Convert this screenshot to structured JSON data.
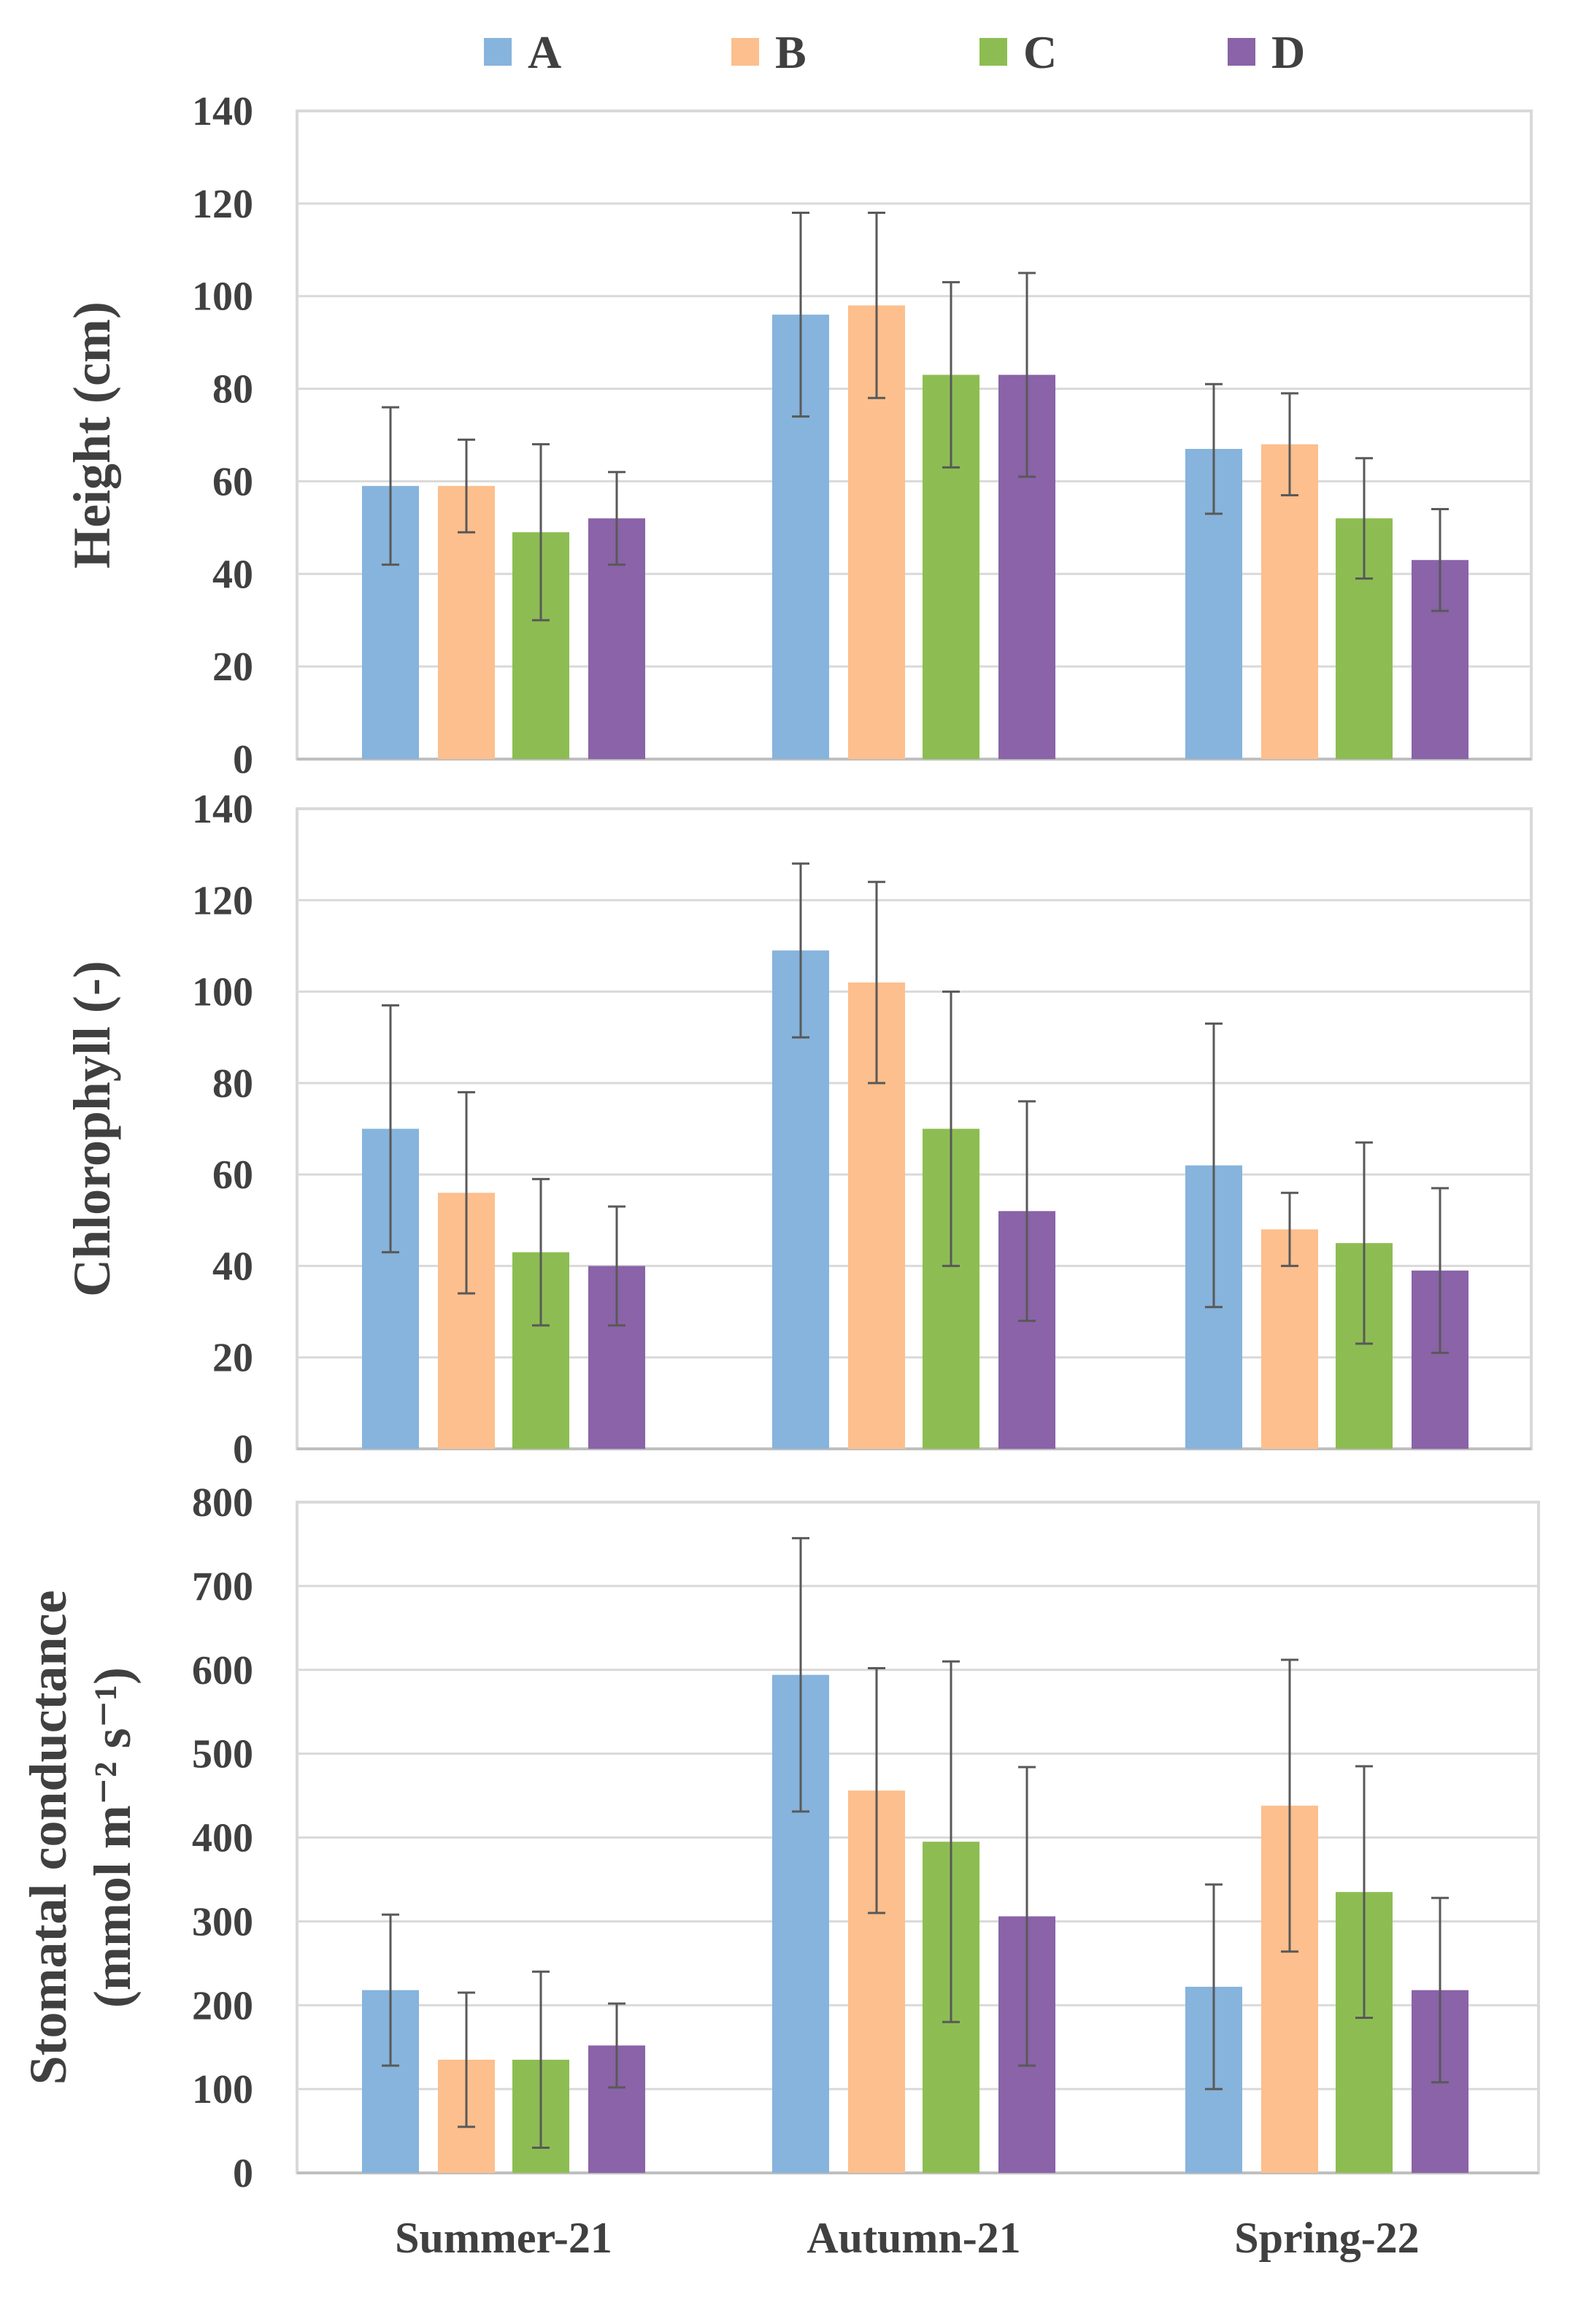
{
  "legend": [
    {
      "name": "A",
      "color": "#86b4dc"
    },
    {
      "name": "B",
      "color": "#fcbf8d"
    },
    {
      "name": "C",
      "color": "#8dbd52"
    },
    {
      "name": "D",
      "color": "#8a63a8"
    }
  ],
  "chart_data": [
    {
      "type": "bar",
      "ylabel_lines": [
        "Height (cm)"
      ],
      "ylim": [
        0,
        140
      ],
      "yticks": [
        0,
        20,
        40,
        60,
        80,
        100,
        120,
        140
      ],
      "grid": true,
      "categories": [
        "Summer-21",
        "Autumn-21",
        "Spring-22"
      ],
      "series": [
        {
          "name": "A",
          "values": [
            59,
            96,
            67
          ],
          "errors": [
            17,
            22,
            14
          ]
        },
        {
          "name": "B",
          "values": [
            59,
            98,
            68
          ],
          "errors": [
            10,
            20,
            11
          ]
        },
        {
          "name": "C",
          "values": [
            49,
            83,
            52
          ],
          "errors": [
            19,
            20,
            13
          ]
        },
        {
          "name": "D",
          "values": [
            52,
            83,
            43
          ],
          "errors": [
            10,
            22,
            11
          ]
        }
      ]
    },
    {
      "type": "bar",
      "ylabel_lines": [
        "Chlorophyll (-)"
      ],
      "ylim": [
        0,
        140
      ],
      "yticks": [
        0,
        20,
        40,
        60,
        80,
        100,
        120,
        140
      ],
      "grid": true,
      "categories": [
        "Summer-21",
        "Autumn-21",
        "Spring-22"
      ],
      "series": [
        {
          "name": "A",
          "values": [
            70,
            109,
            62
          ],
          "errors": [
            27,
            19,
            31
          ]
        },
        {
          "name": "B",
          "values": [
            56,
            102,
            48
          ],
          "errors": [
            22,
            22,
            8
          ]
        },
        {
          "name": "C",
          "values": [
            43,
            70,
            45
          ],
          "errors": [
            16,
            30,
            22
          ]
        },
        {
          "name": "D",
          "values": [
            40,
            52,
            39
          ],
          "errors": [
            13,
            24,
            18
          ]
        }
      ]
    },
    {
      "type": "bar",
      "ylabel_lines": [
        "Stomatal conductance",
        "(mmol m⁻² s⁻¹)"
      ],
      "ylim": [
        0,
        800
      ],
      "yticks": [
        0,
        100,
        200,
        300,
        400,
        500,
        600,
        700,
        800
      ],
      "grid": true,
      "categories": [
        "Summer-21",
        "Autumn-21",
        "Spring-22"
      ],
      "series": [
        {
          "name": "A",
          "values": [
            218,
            594,
            222
          ],
          "errors": [
            90,
            163,
            122
          ]
        },
        {
          "name": "B",
          "values": [
            135,
            456,
            438
          ],
          "errors": [
            80,
            146,
            174
          ]
        },
        {
          "name": "C",
          "values": [
            135,
            395,
            335
          ],
          "errors": [
            105,
            215,
            150
          ]
        },
        {
          "name": "D",
          "values": [
            152,
            306,
            218
          ],
          "errors": [
            50,
            178,
            110
          ]
        }
      ]
    }
  ],
  "x_categories": [
    "Summer-21",
    "Autumn-21",
    "Spring-22"
  ]
}
